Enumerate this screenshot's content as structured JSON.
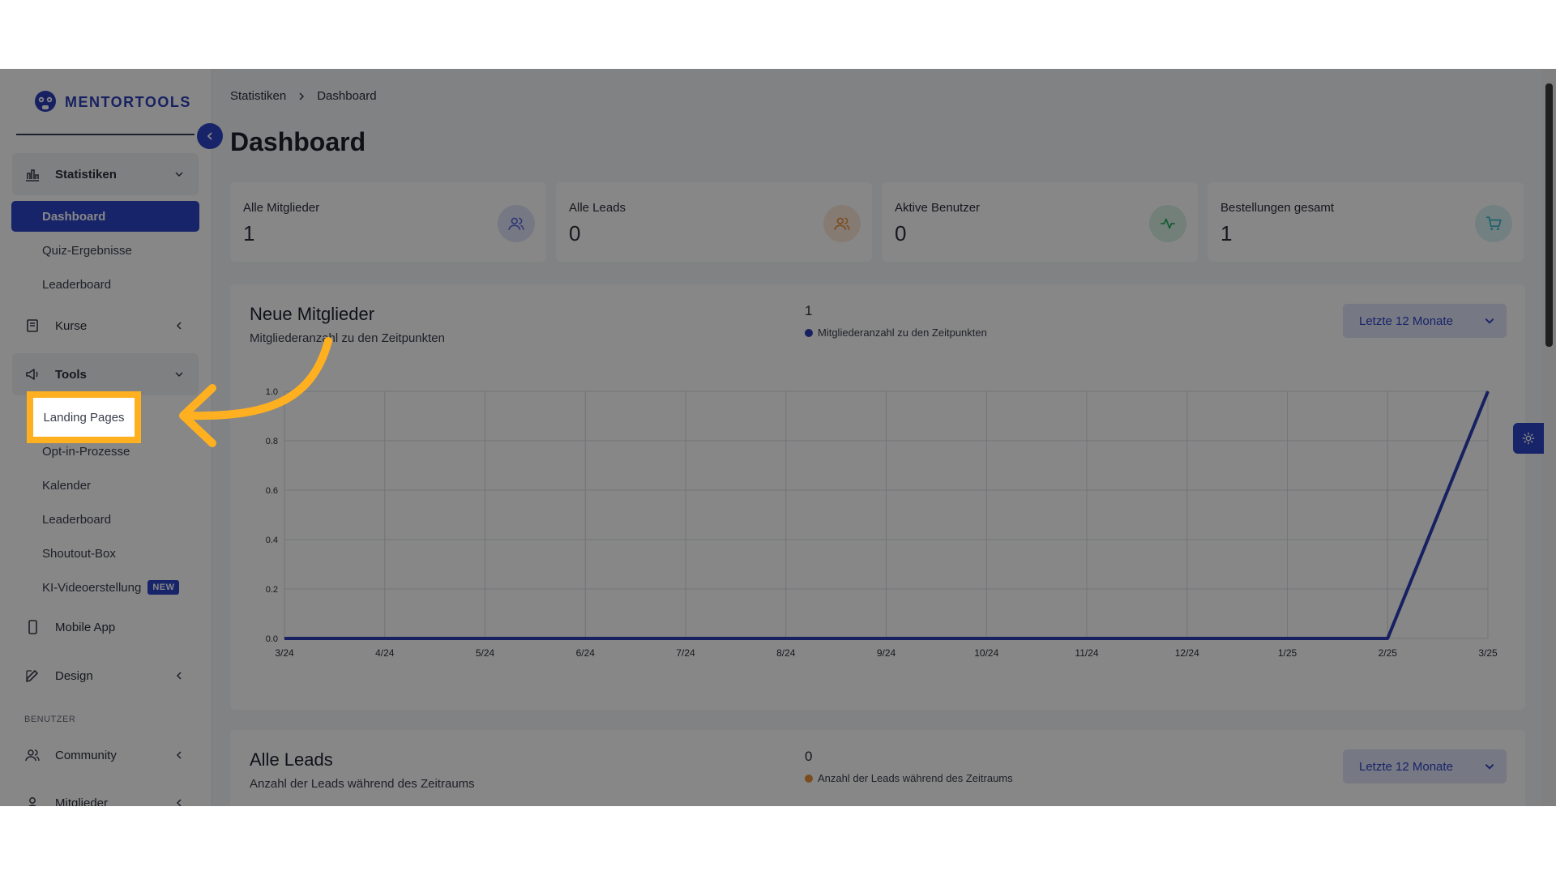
{
  "app": {
    "brand": "MENTORTOOLS"
  },
  "sidebar": {
    "groups": {
      "statistiken": "Statistiken",
      "kurse": "Kurse",
      "tools": "Tools",
      "mobile_app": "Mobile App",
      "design": "Design",
      "community": "Community",
      "mitglieder": "Mitglieder"
    },
    "statistiken_items": [
      "Dashboard",
      "Quiz-Ergebnisse",
      "Leaderboard"
    ],
    "tools_items": [
      "Landing Pages",
      "Opt-in-Prozesse",
      "Kalender",
      "Leaderboard",
      "Shoutout-Box",
      "KI-Videoerstellung"
    ],
    "new_badge": "NEW",
    "section_benutzer": "BENUTZER"
  },
  "breadcrumb": [
    "Statistiken",
    "Dashboard"
  ],
  "page_title": "Dashboard",
  "stats": [
    {
      "title": "Alle Mitglieder",
      "value": "1",
      "icon": "users-icon",
      "color": "#5b6be0"
    },
    {
      "title": "Alle Leads",
      "value": "0",
      "icon": "users-icon",
      "color": "#e8903a"
    },
    {
      "title": "Aktive Benutzer",
      "value": "0",
      "icon": "activity-icon",
      "color": "#2fae67"
    },
    {
      "title": "Bestellungen gesamt",
      "value": "1",
      "icon": "cart-icon",
      "color": "#3cb8c8"
    }
  ],
  "panel_members": {
    "title": "Neue Mitglieder",
    "subtitle": "Mitgliederanzahl zu den Zeitpunkten",
    "total": "1",
    "legend": "Mitgliederanzahl zu den Zeitpunkten",
    "legend_color": "#2c3fb8",
    "dropdown": "Letzte 12 Monate"
  },
  "panel_leads": {
    "title": "Alle Leads",
    "subtitle": "Anzahl der Leads während des Zeitraums",
    "total": "0",
    "legend": "Anzahl der Leads während des Zeitraums",
    "legend_color": "#e8903a",
    "dropdown": "Letzte 12 Monate"
  },
  "chart_data": {
    "type": "line",
    "categories": [
      "3/24",
      "4/24",
      "5/24",
      "6/24",
      "7/24",
      "8/24",
      "9/24",
      "10/24",
      "11/24",
      "12/24",
      "1/25",
      "2/25",
      "3/25"
    ],
    "series": [
      {
        "name": "Mitgliederanzahl zu den Zeitpunkten",
        "values": [
          0,
          0,
          0,
          0,
          0,
          0,
          0,
          0,
          0,
          0,
          0,
          0,
          1
        ]
      }
    ],
    "yticks": [
      "0.0",
      "0.2",
      "0.4",
      "0.6",
      "0.8",
      "1.0"
    ],
    "ylim": [
      0,
      1
    ],
    "grid": true,
    "color": "#2c3fb8"
  },
  "annotation": {
    "highlight_label": "Landing Pages",
    "color": "#ffb020"
  }
}
